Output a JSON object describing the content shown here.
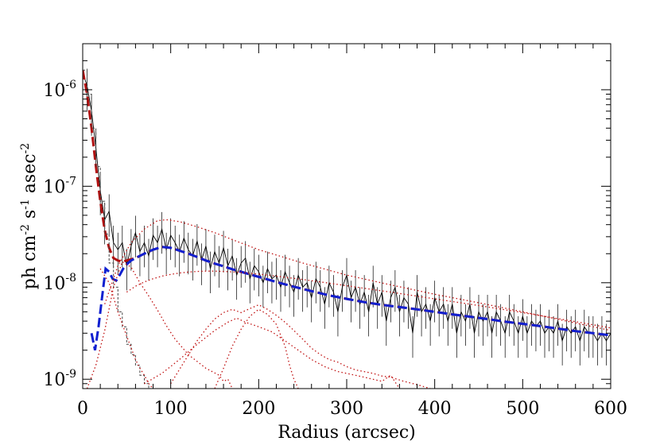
{
  "chart_data": {
    "type": "line",
    "title": "",
    "xlabel": "Radius (arcsec)",
    "ylabel_parts": {
      "base": "ph cm",
      "exp1": "-2",
      "mid1": " s",
      "exp2": "-1",
      "mid2": " asec",
      "exp3": "-2"
    },
    "xlim": [
      0,
      600
    ],
    "ylim": [
      8e-10,
      3e-06
    ],
    "y_scale": "log",
    "grid": false,
    "x_ticks": [
      0,
      100,
      200,
      300,
      400,
      500,
      600
    ],
    "x_tick_labels": [
      "0",
      "100",
      "200",
      "300",
      "400",
      "500",
      "600"
    ],
    "y_ticks": [
      {
        "value": 1e-06,
        "base": "10",
        "exp": "-6"
      },
      {
        "value": 1e-07,
        "base": "10",
        "exp": "-7"
      },
      {
        "value": 1e-08,
        "base": "10",
        "exp": "-8"
      },
      {
        "value": 1e-09,
        "base": "10",
        "exp": "-9"
      }
    ],
    "series": [
      {
        "key": "observed",
        "style": "solid",
        "color": "#000000",
        "x": [
          0,
          5,
          10,
          15,
          20,
          25,
          30,
          35,
          40,
          45,
          50,
          55,
          60,
          65,
          70,
          75,
          80,
          85,
          90,
          95,
          100,
          105,
          110,
          115,
          120,
          125,
          130,
          135,
          140,
          145,
          150,
          155,
          160,
          165,
          170,
          175,
          180,
          185,
          190,
          195,
          200,
          205,
          210,
          215,
          220,
          225,
          230,
          235,
          240,
          245,
          250,
          255,
          260,
          265,
          270,
          275,
          280,
          285,
          290,
          295,
          300,
          305,
          310,
          315,
          320,
          325,
          330,
          335,
          340,
          345,
          350,
          355,
          360,
          365,
          370,
          375,
          380,
          385,
          390,
          395,
          400,
          405,
          410,
          415,
          420,
          425,
          430,
          435,
          440,
          445,
          450,
          455,
          460,
          465,
          470,
          475,
          480,
          485,
          490,
          495,
          500,
          505,
          510,
          515,
          520,
          525,
          530,
          535,
          540,
          545,
          550,
          555,
          560,
          565,
          570,
          575,
          580,
          585,
          590,
          595,
          600
        ],
        "y": [
          1.5e-06,
          1.1e-06,
          6e-07,
          2.5e-07,
          9e-08,
          4.5e-08,
          5.5e-08,
          2.6e-08,
          2.2e-08,
          2.6e-08,
          1.5e-08,
          2.4e-08,
          3.3e-08,
          2.1e-08,
          2.6e-08,
          1.9e-08,
          3.1e-08,
          2.6e-08,
          3.6e-08,
          2.2e-08,
          3.1e-08,
          2.6e-08,
          2.1e-08,
          2.9e-08,
          2.2e-08,
          1.9e-08,
          2.7e-08,
          1.7e-08,
          2.4e-08,
          1.4e-08,
          2.1e-08,
          1.6e-08,
          2.3e-08,
          1.5e-08,
          1.9e-08,
          1.2e-08,
          1.6e-08,
          1.8e-08,
          1.1e-08,
          1.5e-08,
          1.3e-08,
          1e-08,
          1.4e-08,
          1.1e-08,
          1.2e-08,
          9e-09,
          1.3e-08,
          1e-08,
          8e-09,
          1.2e-08,
          9e-09,
          1e-08,
          7e-09,
          1.1e-08,
          9e-09,
          6e-09,
          1e-08,
          8e-09,
          5e-09,
          9e-09,
          1.2e-08,
          7e-09,
          9e-09,
          6e-09,
          8e-09,
          5e-09,
          1e-08,
          6e-09,
          8e-09,
          4e-09,
          7e-09,
          9e-09,
          5e-09,
          7e-09,
          6e-09,
          3e-09,
          8e-09,
          5e-09,
          6e-09,
          4e-09,
          7e-09,
          5e-09,
          6e-09,
          4e-09,
          6e-09,
          3e-09,
          5e-09,
          4e-09,
          6e-09,
          3e-09,
          5e-09,
          4e-09,
          5e-09,
          3e-09,
          5e-09,
          4e-09,
          3e-09,
          5e-09,
          4e-09,
          3e-09,
          4.5e-09,
          3e-09,
          4e-09,
          3.5e-09,
          4e-09,
          3e-09,
          3.5e-09,
          3e-09,
          4e-09,
          2.5e-09,
          3.5e-09,
          3e-09,
          3.5e-09,
          2.5e-09,
          3.5e-09,
          3e-09,
          3e-09,
          2.5e-09,
          3e-09,
          2.5e-09,
          3e-09
        ]
      },
      {
        "key": "total-model",
        "style": "dashed",
        "color": "#b01010",
        "x": [
          0,
          5,
          10,
          15,
          20,
          25,
          30,
          35,
          40,
          45,
          50,
          60,
          70,
          80,
          90,
          100,
          110,
          120,
          130,
          140,
          150,
          160,
          170,
          180,
          190,
          200,
          220,
          240,
          260,
          280,
          300,
          320,
          340,
          360,
          380,
          400,
          420,
          440,
          460,
          480,
          500,
          520,
          540,
          560,
          580,
          600
        ],
        "y": [
          1.6e-06,
          9e-07,
          4e-07,
          1.6e-07,
          7e-08,
          3.5e-08,
          2.3e-08,
          1.8e-08,
          1.7e-08,
          1.65e-08,
          1.7e-08,
          1.8e-08,
          2e-08,
          2.2e-08,
          2.35e-08,
          2.3e-08,
          2.15e-08,
          2e-08,
          1.85e-08,
          1.7e-08,
          1.58e-08,
          1.48e-08,
          1.38e-08,
          1.3e-08,
          1.22e-08,
          1.15e-08,
          1.02e-08,
          9.1e-09,
          8.2e-09,
          7.4e-09,
          6.8e-09,
          6.3e-09,
          5.9e-09,
          5.6e-09,
          5.3e-09,
          5e-09,
          4.7e-09,
          4.45e-09,
          4.2e-09,
          3.95e-09,
          3.75e-09,
          3.55e-09,
          3.35e-09,
          3.15e-09,
          3e-09,
          2.85e-09
        ]
      },
      {
        "key": "cluster-model",
        "style": "dashed",
        "color": "#1020d0",
        "x": [
          10,
          14,
          18,
          22,
          26,
          30,
          34,
          38,
          42,
          46,
          50,
          55,
          60,
          70,
          80,
          90,
          100,
          110,
          120,
          130,
          140,
          150,
          160,
          170,
          180,
          190,
          200,
          220,
          240,
          260,
          280,
          300,
          320,
          340,
          360,
          380,
          400,
          420,
          440,
          460,
          480,
          500,
          520,
          540,
          560,
          580,
          600
        ],
        "y": [
          3e-09,
          2e-09,
          3.5e-09,
          7e-09,
          1.4e-08,
          1.3e-08,
          1.1e-08,
          1.05e-08,
          1.2e-08,
          1.4e-08,
          1.55e-08,
          1.7e-08,
          1.8e-08,
          2e-08,
          2.2e-08,
          2.35e-08,
          2.3e-08,
          2.15e-08,
          2e-08,
          1.85e-08,
          1.7e-08,
          1.58e-08,
          1.48e-08,
          1.38e-08,
          1.3e-08,
          1.22e-08,
          1.15e-08,
          1.02e-08,
          9.1e-09,
          8.2e-09,
          7.4e-09,
          6.8e-09,
          6.3e-09,
          5.9e-09,
          5.6e-09,
          5.3e-09,
          5e-09,
          4.7e-09,
          4.45e-09,
          4.2e-09,
          3.95e-09,
          3.75e-09,
          3.55e-09,
          3.35e-09,
          3.15e-09,
          3e-09,
          2.85e-09
        ]
      },
      {
        "key": "psf-step",
        "style": "dashed-step",
        "color": "#444444",
        "x": [
          0,
          5,
          10,
          15,
          20,
          25,
          30,
          35,
          40,
          45,
          50,
          55,
          60,
          65,
          70,
          75
        ],
        "y": [
          1.6e-06,
          9e-07,
          4e-07,
          1.6e-07,
          7e-08,
          3.2e-08,
          1.6e-08,
          9e-09,
          5e-09,
          3.5e-09,
          2.3e-09,
          1.8e-09,
          1.4e-09,
          1.1e-09,
          9e-10,
          8e-10
        ]
      },
      {
        "key": "component-1",
        "style": "dotted",
        "color": "#c01010",
        "x": [
          25,
          40,
          55,
          70,
          85,
          95,
          110,
          130,
          150,
          170,
          200,
          250,
          300,
          350,
          400,
          450,
          500,
          550,
          600
        ],
        "y": [
          6e-09,
          1.5e-08,
          2.6e-08,
          3.6e-08,
          4.4e-08,
          4.5e-08,
          4.3e-08,
          3.8e-08,
          3.3e-08,
          2.8e-08,
          2.2e-08,
          1.6e-08,
          1.2e-08,
          9.5e-09,
          7.6e-09,
          6.2e-09,
          5e-09,
          4e-09,
          3.2e-09
        ]
      },
      {
        "key": "component-2",
        "style": "dotted",
        "color": "#c01010",
        "x": [
          50,
          60,
          70,
          80,
          90,
          100,
          110,
          120,
          130,
          140,
          150,
          160,
          180,
          200,
          220,
          250,
          280,
          300,
          350,
          400,
          450,
          500,
          550,
          600
        ],
        "y": [
          8e-09,
          9.2e-09,
          1.02e-08,
          1.1e-08,
          1.17e-08,
          1.22e-08,
          1.26e-08,
          1.29e-08,
          1.31e-08,
          1.32e-08,
          1.32e-08,
          1.31e-08,
          1.28e-08,
          1.23e-08,
          1.17e-08,
          1.08e-08,
          9.9e-09,
          9.3e-09,
          8e-09,
          6.8e-09,
          5.8e-09,
          4.9e-09,
          4.1e-09,
          3.4e-09
        ]
      },
      {
        "key": "component-3",
        "style": "dotted",
        "color": "#c01010",
        "x": [
          20,
          30,
          40,
          50,
          60,
          65,
          70,
          75,
          80
        ],
        "y": [
          1.4e-08,
          1e-08,
          5e-09,
          2.8e-09,
          1.6e-09,
          1.3e-09,
          1.1e-09,
          9e-10,
          8e-10
        ]
      },
      {
        "key": "component-4",
        "style": "dotted",
        "color": "#c01010",
        "x": [
          5,
          15,
          25,
          35,
          45,
          55,
          65,
          75,
          85,
          95,
          105,
          120,
          140,
          155,
          160,
          165,
          170
        ],
        "y": [
          8e-10,
          1.4e-09,
          3.2e-09,
          9e-09,
          1.65e-08,
          1.45e-08,
          1e-08,
          7.3e-09,
          5.2e-09,
          3.6e-09,
          2.6e-09,
          1.8e-09,
          1.3e-09,
          1.1e-09,
          9.5e-10,
          1e-09,
          8e-10
        ]
      },
      {
        "key": "component-5",
        "style": "dotted",
        "color": "#c01010",
        "x": [
          70,
          90,
          110,
          130,
          150,
          165,
          175,
          185,
          200,
          215,
          230,
          245,
          260,
          275,
          290,
          300,
          320,
          340,
          350,
          360
        ],
        "y": [
          9e-10,
          1.15e-09,
          1.6e-09,
          2.3e-09,
          3.2e-09,
          3.9e-09,
          4.3e-09,
          3.9e-09,
          3.5e-09,
          3.1e-09,
          2.5e-09,
          2e-09,
          1.6e-09,
          1.35e-09,
          1.2e-09,
          1.15e-09,
          1.05e-09,
          9.5e-10,
          1.1e-09,
          8e-10
        ]
      },
      {
        "key": "component-6",
        "style": "dotted",
        "color": "#c01010",
        "x": [
          100,
          115,
          130,
          140,
          150,
          160,
          170,
          180,
          190,
          200,
          210,
          220,
          230,
          240,
          250,
          260,
          270,
          280,
          290,
          300,
          310,
          320,
          330,
          340,
          350,
          365,
          380,
          395
        ],
        "y": [
          9e-10,
          1.5e-09,
          2.5e-09,
          3.3e-09,
          4.2e-09,
          4.9e-09,
          5.3e-09,
          4.9e-09,
          5.4e-09,
          5.9e-09,
          5.3e-09,
          4.6e-09,
          3.9e-09,
          3.2e-09,
          2.6e-09,
          2.1e-09,
          1.8e-09,
          1.6e-09,
          1.5e-09,
          1.35e-09,
          1.25e-09,
          1.2e-09,
          1.15e-09,
          1.08e-09,
          1.05e-09,
          9.5e-10,
          8.8e-10,
          8e-10
        ]
      },
      {
        "key": "component-7",
        "style": "dotted",
        "color": "#c01010",
        "x": [
          150,
          160,
          170,
          180,
          190,
          200,
          210,
          220,
          230,
          235,
          240,
          245
        ],
        "y": [
          8e-10,
          1.3e-09,
          2.2e-09,
          3.3e-09,
          4.5e-09,
          5.3e-09,
          4.7e-09,
          3.7e-09,
          2.2e-09,
          1.4e-09,
          1e-09,
          8e-10
        ]
      }
    ]
  }
}
